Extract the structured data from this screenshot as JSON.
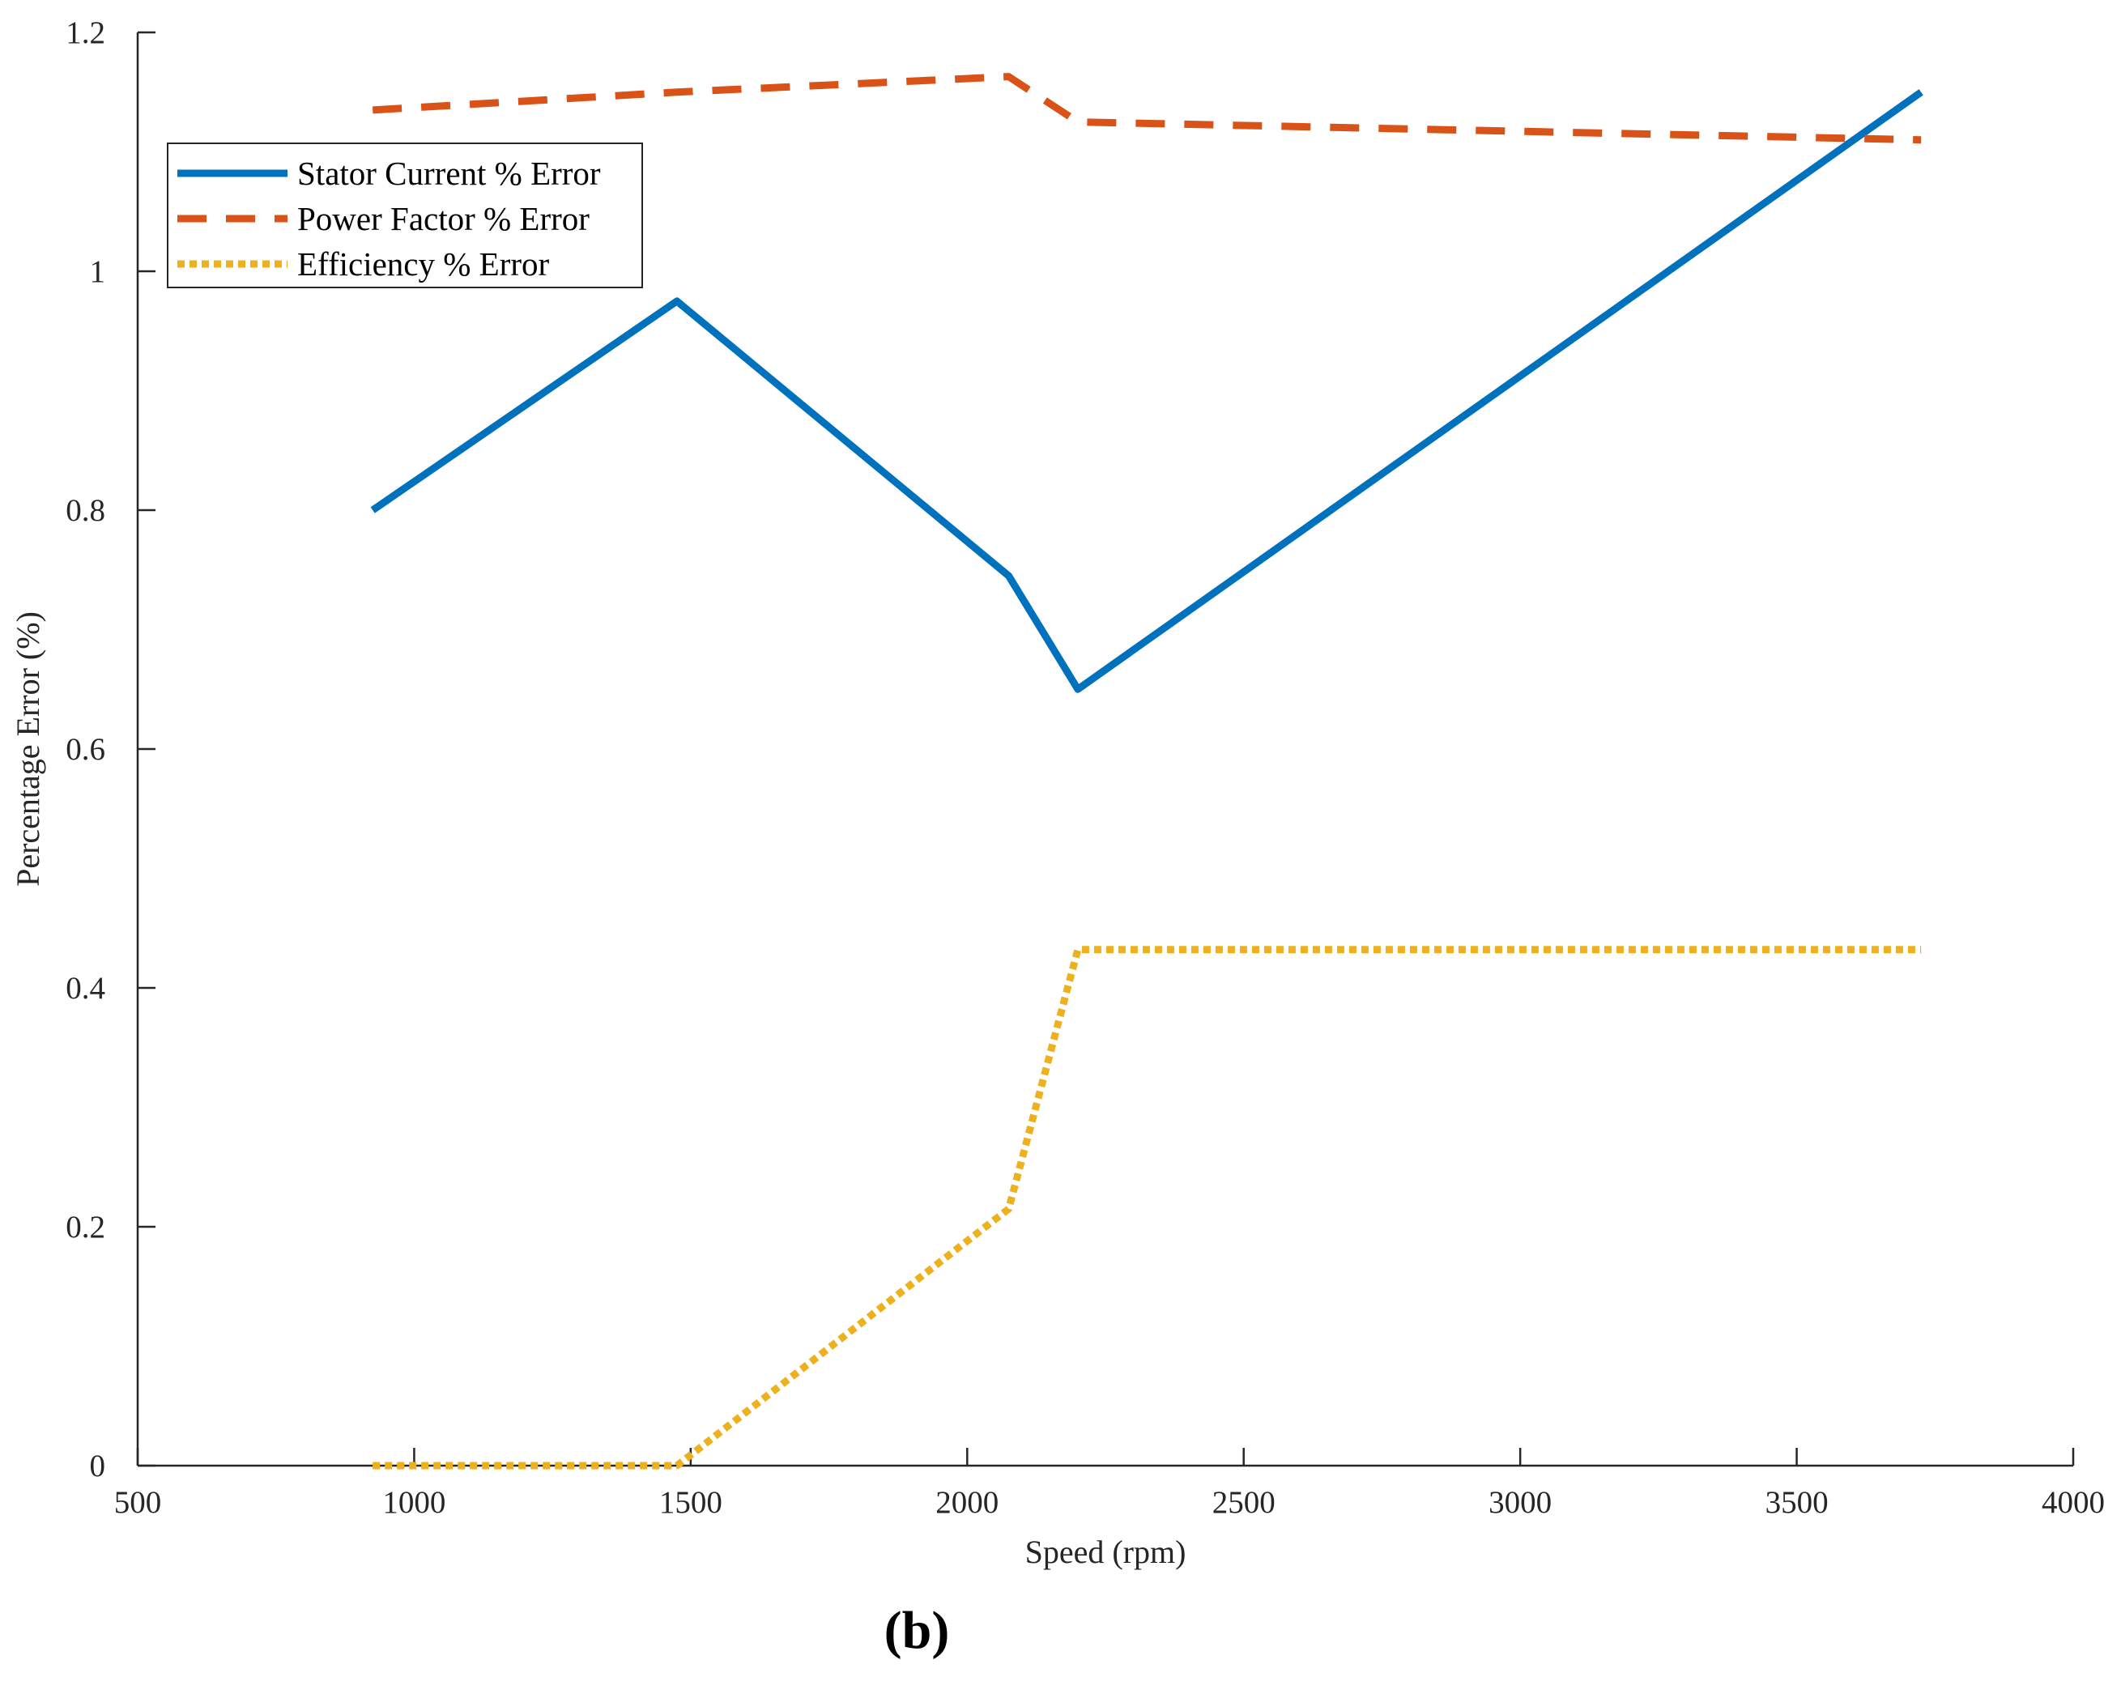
{
  "chart_data": {
    "type": "line",
    "title": "",
    "xlabel": "Speed (rpm)",
    "ylabel": "Percentage Error (%)",
    "xlim": [
      500,
      4000
    ],
    "ylim": [
      0,
      1.2
    ],
    "xticks": [
      500,
      1000,
      1500,
      2000,
      2500,
      3000,
      3500,
      4000
    ],
    "yticks": [
      0,
      0.2,
      0.4,
      0.6,
      0.8,
      1,
      1.2
    ],
    "xtick_labels": [
      "500",
      "1000",
      "1500",
      "2000",
      "2500",
      "3000",
      "3500",
      "4000"
    ],
    "ytick_labels": [
      "0",
      "0.2",
      "0.4",
      "0.6",
      "0.8",
      "1",
      "1.2"
    ],
    "grid": false,
    "legend_position": "top-left",
    "series": [
      {
        "name": "Stator Current % Error",
        "color": "#0072BD",
        "style": "solid",
        "x": [
          925,
          1475,
          2075,
          2200,
          3725
        ],
        "y": [
          0.8,
          0.975,
          0.745,
          0.65,
          1.15
        ]
      },
      {
        "name": "Power Factor % Error",
        "color": "#D95319",
        "style": "dashed",
        "x": [
          925,
          1475,
          2075,
          2200,
          3725
        ],
        "y": [
          1.135,
          1.15,
          1.163,
          1.125,
          1.11
        ]
      },
      {
        "name": "Efficiency % Error",
        "color": "#EDB120",
        "style": "dotted",
        "x": [
          925,
          1475,
          2075,
          2200,
          3725
        ],
        "y": [
          0,
          0,
          0.215,
          0.432,
          0.432
        ]
      }
    ]
  },
  "caption": "(b)"
}
